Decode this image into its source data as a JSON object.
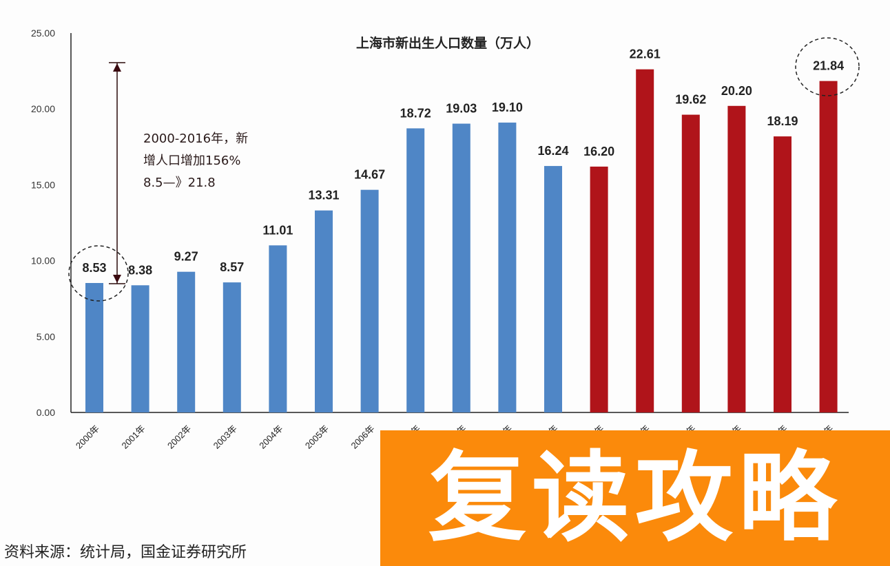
{
  "chart_data": {
    "type": "bar",
    "title": "上海市新出生人口数量（万人）",
    "categories": [
      "2000年",
      "2001年",
      "2002年",
      "2003年",
      "2004年",
      "2005年",
      "2006年",
      "2007年",
      "2008年",
      "2009年",
      "2010年",
      "2011年",
      "2012年",
      "2013年",
      "2014年",
      "2015年",
      "2016年"
    ],
    "values": [
      8.53,
      8.38,
      9.27,
      8.57,
      11.01,
      13.31,
      14.67,
      18.72,
      19.03,
      19.1,
      16.24,
      16.2,
      22.61,
      19.62,
      20.2,
      18.19,
      21.84
    ],
    "value_labels": [
      "8.53",
      "8.38",
      "9.27",
      "8.57",
      "11.01",
      "13.31",
      "14.67",
      "18.72",
      "19.03",
      "19.10",
      "16.24",
      "16.20",
      "22.61",
      "19.62",
      "20.20",
      "18.19",
      "21.84"
    ],
    "bar_colors": [
      "#4f86c6",
      "#4f86c6",
      "#4f86c6",
      "#4f86c6",
      "#4f86c6",
      "#4f86c6",
      "#4f86c6",
      "#4f86c6",
      "#4f86c6",
      "#4f86c6",
      "#4f86c6",
      "#b0141a",
      "#b0141a",
      "#b0141a",
      "#b0141a",
      "#b0141a",
      "#b0141a"
    ],
    "ylim": [
      0,
      25
    ],
    "yticks": [
      "0.00",
      "5.00",
      "10.00",
      "15.00",
      "20.00",
      "25.00"
    ],
    "xlabel": "",
    "ylabel": "",
    "grid": false,
    "annotation": {
      "line1": "2000-2016年，新",
      "line2": "增人口增加156%",
      "line3": "8.5—》21.8"
    },
    "highlighted": [
      "2000年",
      "2016年"
    ]
  },
  "source": "资料来源：统计局，国金证券研究所",
  "watermark": "复读攻略",
  "colors": {
    "blue": "#4f86c6",
    "red": "#b0141a",
    "banner": "#fb8a0b"
  }
}
